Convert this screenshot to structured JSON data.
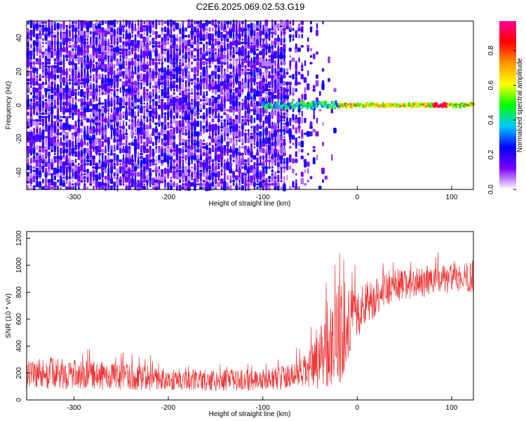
{
  "title": "C2E6.2025.069.02.53.G19",
  "chart_data": [
    {
      "type": "heatmap",
      "xlabel": "Height of straight line (km)",
      "ylabel": "Frequency (Hz)",
      "xlim": [
        -350,
        123
      ],
      "ylim": [
        -50,
        50
      ],
      "xticks": [
        -300,
        -200,
        -100,
        0,
        100
      ],
      "yticks": [
        -40,
        -20,
        0,
        20,
        40
      ],
      "xtick_labels": [
        "-300",
        "-200",
        "-100",
        "0",
        "100"
      ],
      "ytick_labels": [
        "-40",
        "-20",
        "0",
        "20",
        "40"
      ],
      "colorbar": {
        "label": "Normalized spectral amplitude",
        "range": [
          0,
          0.97
        ],
        "ticks": [
          0.0,
          0.2,
          0.4,
          0.6,
          0.8
        ],
        "tick_labels": [
          "0.0",
          "0.2",
          "0.4",
          "0.6",
          "0.8"
        ],
        "colors": [
          "#ffffff",
          "#7b00ff",
          "#0000ff",
          "#00c8ff",
          "#00ff00",
          "#ffff00",
          "#ff9600",
          "#ff0000",
          "#ff0096"
        ]
      },
      "description_data": {
        "noise_region_x": [
          -350,
          -75
        ],
        "noise_fade_x": [
          -75,
          -20
        ],
        "noise_amplitude": [
          0.05,
          0.25
        ],
        "signal_line_frequency": 0,
        "signal_line_x": [
          -100,
          123
        ],
        "signal_peak_x": 88,
        "signal_peak_amplitude": 0.95
      }
    },
    {
      "type": "line",
      "xlabel": "Height of straight line (km)",
      "ylabel": "SNR (10 * v/v)",
      "xlim": [
        -350,
        123
      ],
      "ylim": [
        0,
        1250
      ],
      "xticks": [
        -300,
        -200,
        -100,
        0,
        100
      ],
      "yticks": [
        0,
        200,
        400,
        600,
        800,
        1000,
        1200
      ],
      "xtick_labels": [
        "-300",
        "-200",
        "-100",
        "0",
        "100"
      ],
      "ytick_labels": [
        "0",
        "200",
        "400",
        "600",
        "800",
        "1000",
        "1200"
      ],
      "color": "#ee3333",
      "trend": {
        "x": [
          -350,
          -300,
          -250,
          -200,
          -150,
          -100,
          -80,
          -60,
          -45,
          -30,
          -20,
          -15,
          -10,
          0,
          10,
          20,
          30,
          50,
          80,
          100,
          123
        ],
        "mean": [
          200,
          190,
          175,
          150,
          145,
          150,
          165,
          190,
          250,
          400,
          500,
          520,
          560,
          640,
          720,
          780,
          830,
          860,
          880,
          900,
          920
        ],
        "spread": [
          120,
          110,
          100,
          80,
          80,
          80,
          90,
          110,
          180,
          300,
          380,
          420,
          260,
          180,
          160,
          150,
          140,
          120,
          110,
          110,
          120
        ]
      }
    }
  ]
}
